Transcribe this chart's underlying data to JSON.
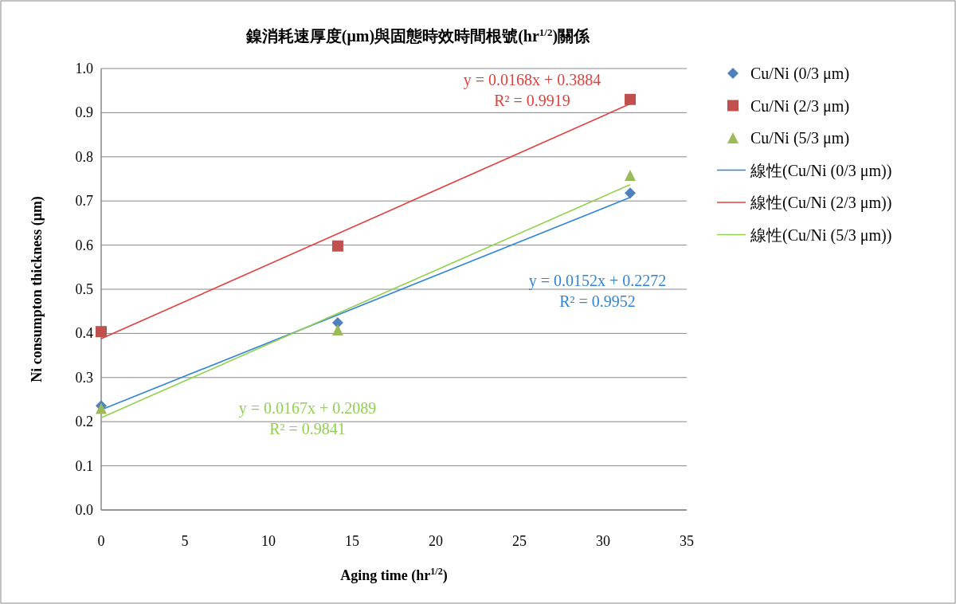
{
  "chart_data": {
    "type": "scatter",
    "title": "鎳消耗速厚度(μm)與固態時效時間根號(hr$^{1/2}$)關係",
    "xlabel": "Aging time (hr$^{1/2}$)",
    "ylabel": "Ni consumpton thickness (μm)",
    "xlim": [
      0,
      35
    ],
    "xticks": [
      0,
      5,
      10,
      15,
      20,
      25,
      30,
      35
    ],
    "ylim": [
      0,
      1
    ],
    "yticks": [
      {
        "value": 0,
        "label": "0.0"
      },
      {
        "value": 0.1,
        "label": "0.1"
      },
      {
        "value": 0.2,
        "label": "0.2"
      },
      {
        "value": 0.3,
        "label": "0.3"
      },
      {
        "value": 0.4,
        "label": "0.4"
      },
      {
        "value": 0.5,
        "label": "0.5"
      },
      {
        "value": 0.6,
        "label": "0.6"
      },
      {
        "value": 0.7,
        "label": "0.7"
      },
      {
        "value": 0.8,
        "label": "0.8"
      },
      {
        "value": 0.9,
        "label": "0.9"
      },
      {
        "value": 1.0,
        "label": "1.0"
      }
    ],
    "grid": "y",
    "legend": "right",
    "series": [
      {
        "name": "Cu/Ni (0/3 μm)",
        "marker": "diamond",
        "color": "#4f81bd",
        "x": [
          0,
          14.14,
          31.62
        ],
        "values": [
          0.236,
          0.424,
          0.718
        ]
      },
      {
        "name": "Cu/Ni (2/3 μm)",
        "marker": "square",
        "color": "#c0504d",
        "x": [
          0,
          14.14,
          31.62
        ],
        "values": [
          0.404,
          0.598,
          0.93
        ]
      },
      {
        "name": "Cu/Ni (5/3 μm)",
        "marker": "triangle",
        "color": "#9bbb59",
        "x": [
          0,
          14.14,
          31.62
        ],
        "values": [
          0.23,
          0.408,
          0.758
        ]
      },
      {
        "name": "線性(Cu/Ni (0/3 μm))",
        "type": "line",
        "marker": "none",
        "color": "#2f84d6",
        "x": [
          0,
          31.62
        ],
        "values": [
          0.227,
          0.708
        ]
      },
      {
        "name": "線性(Cu/Ni (2/3 μm))",
        "type": "line",
        "marker": "none",
        "color": "#e0403c",
        "x": [
          0,
          31.62
        ],
        "values": [
          0.388,
          0.92
        ]
      },
      {
        "name": "線性(Cu/Ni (5/3 μm))",
        "type": "line",
        "marker": "none",
        "color": "#92d050",
        "x": [
          0,
          31.62
        ],
        "values": [
          0.209,
          0.737
        ]
      }
    ],
    "annotations": [
      "y = 0.0152x + 0.2272\nR² = 0.9952",
      "y = 0.0168x + 0.3884\nR² = 0.9919",
      "y = 0.0167x + 0.2089\nR² = 0.9841"
    ]
  }
}
